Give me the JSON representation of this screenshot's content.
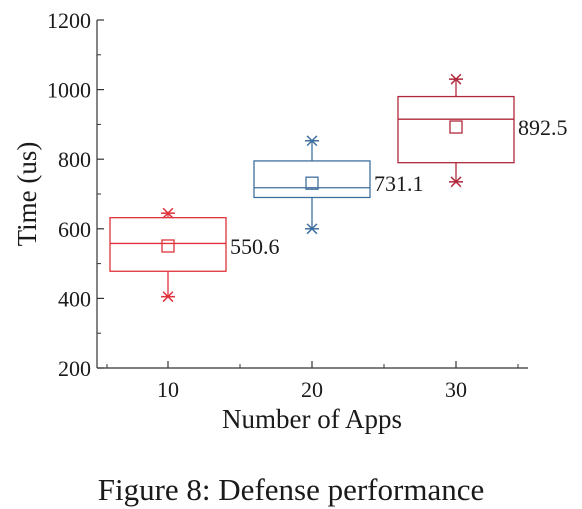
{
  "caption": "Figure 8: Defense performance",
  "chart_data": {
    "type": "box",
    "title": "",
    "xlabel": "Number of Apps",
    "ylabel": "Time (us)",
    "ylim": [
      200,
      1200
    ],
    "yticks": [
      200,
      400,
      600,
      800,
      1000,
      1200
    ],
    "categories": [
      "10",
      "20",
      "30"
    ],
    "grid": false,
    "boxes": [
      {
        "category": "10",
        "color": "#e0323c",
        "q1": 478,
        "median": 558,
        "q3": 632,
        "mean": 550.6,
        "mean_label": "550.6",
        "min": 405,
        "max": 645
      },
      {
        "category": "20",
        "color": "#3f6f9f",
        "q1": 690,
        "median": 718,
        "q3": 795,
        "mean": 731.1,
        "mean_label": "731.1",
        "min": 600,
        "max": 853
      },
      {
        "category": "30",
        "color": "#b0283c",
        "q1": 790,
        "median": 915,
        "q3": 980,
        "mean": 892.5,
        "mean_label": "892.5",
        "min": 735,
        "max": 1030
      }
    ]
  }
}
